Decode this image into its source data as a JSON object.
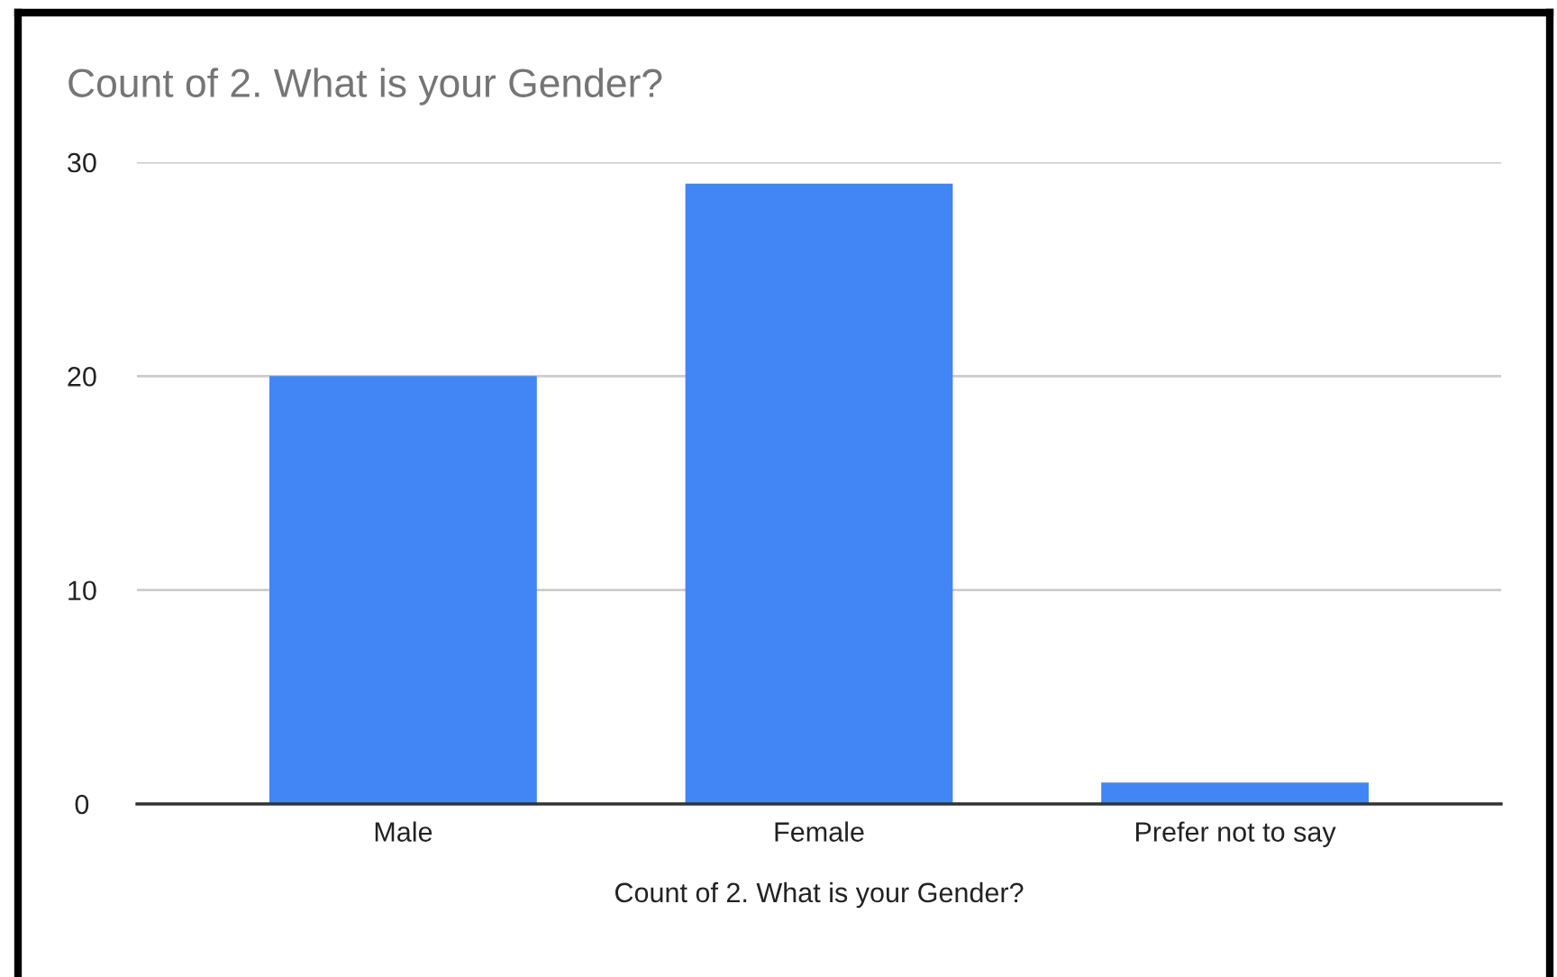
{
  "chart_data": {
    "type": "bar",
    "title": "Count of 2. What is your Gender?",
    "xlabel": "Count of 2. What is your Gender?",
    "categories": [
      "Male",
      "Female",
      "Prefer not to say"
    ],
    "values": [
      20,
      29,
      1
    ],
    "color": "#4285f4",
    "ylim": [
      0,
      30
    ],
    "yticks": [
      0,
      10,
      20,
      30
    ],
    "grid": "y"
  }
}
